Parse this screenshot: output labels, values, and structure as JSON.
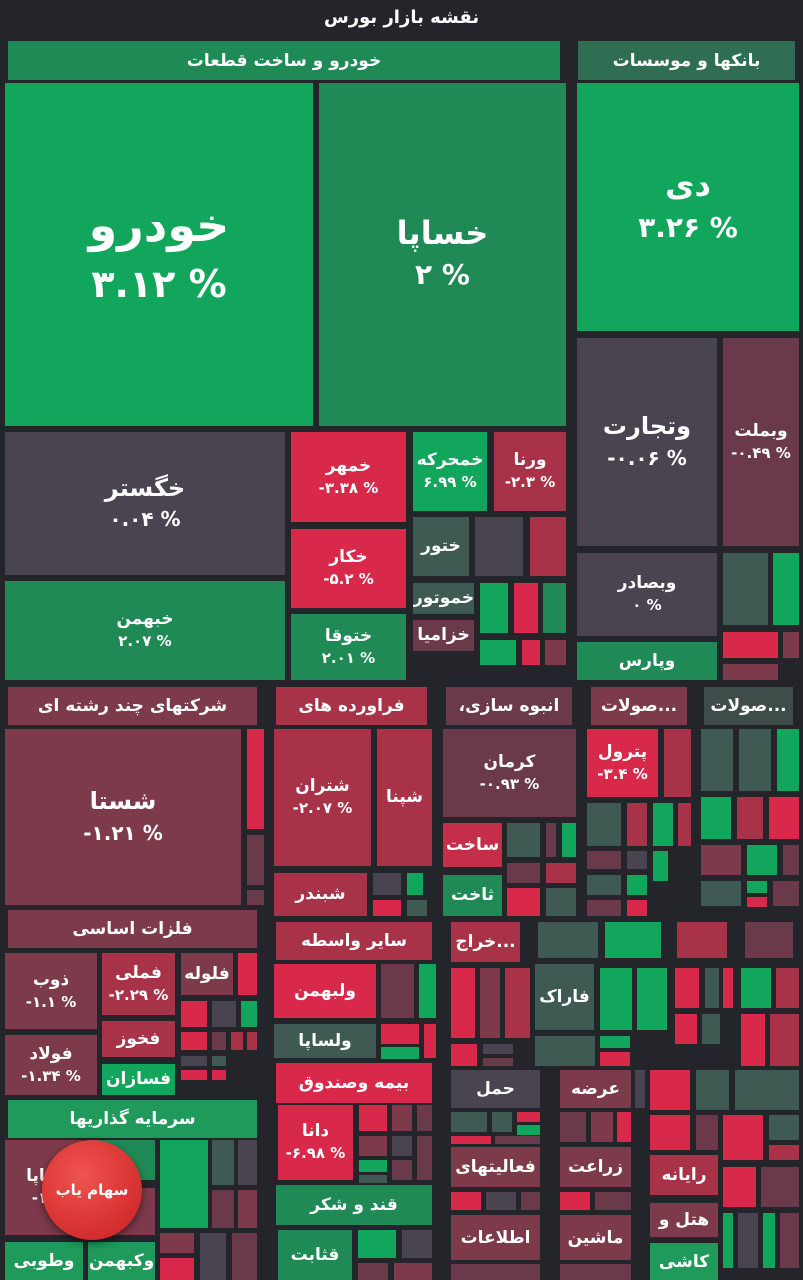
{
  "title": "نقشه بازار بورس",
  "colors": {
    "background": "#23252b",
    "strong_green": "#12a65c",
    "green": "#1f8a55",
    "neutral_green": "#3e5a52",
    "neutral": "#4a4450",
    "light_red": "#6b3a4a",
    "red": "#a83248",
    "strong_red": "#d8294a"
  },
  "sectors": {
    "auto": "خودرو و ساخت قطعات",
    "banks": "بانکها و موسسات",
    "multi": "شرکتهای چند رشته ای",
    "refinery": "فراورده های",
    "construction": "انبوه سازی،",
    "products1": "...صولات",
    "products2": "...صولات",
    "metals": "فلزات اساسی",
    "intermediary": "سایر واسطه",
    "mining": "...خراج",
    "insurance": "بیمه وصندوق",
    "investment": "سرمایه گذاریها",
    "sugar": "قند و شکر",
    "transport": "حمل",
    "supply": "عرضه",
    "activities": "فعالیتهای",
    "information": "اطلاعات",
    "agriculture": "زراعت",
    "machinery": "ماشین",
    "computer": "رایانه",
    "hotel": "هتل و",
    "tile": "کاشی"
  },
  "stocks": {
    "khodro": {
      "name": "خودرو",
      "change": "۳.۱۲ %"
    },
    "khsapa": {
      "name": "خساپا",
      "change": "۲ %"
    },
    "dey": {
      "name": "دی",
      "change": "۳.۲۶ %"
    },
    "vtejarat": {
      "name": "وتجارت",
      "change": "-۰.۰۶ %"
    },
    "vbmellat": {
      "name": "وبملت",
      "change": "-۰.۴۹ %"
    },
    "vbsader": {
      "name": "وبصادر",
      "change": "۰ %"
    },
    "vpars": {
      "name": "وپارس"
    },
    "khgostar": {
      "name": "خگستر",
      "change": "۰.۰۴ %"
    },
    "khbahman": {
      "name": "خبهمن",
      "change": "۲.۰۷ %"
    },
    "khmehr": {
      "name": "خمهر",
      "change": "-۳.۳۸ %"
    },
    "khkar": {
      "name": "خکار",
      "change": "-۵.۲ %"
    },
    "khtoga": {
      "name": "ختوقا",
      "change": "۲.۰۱ %"
    },
    "khmoharrekeh": {
      "name": "خمحرکه",
      "change": "۶.۹۹ %"
    },
    "varna": {
      "name": "ورنا",
      "change": "-۲.۳ %"
    },
    "khtoor": {
      "name": "ختور"
    },
    "khmotor": {
      "name": "خموتور"
    },
    "khzamia": {
      "name": "خزامیا"
    },
    "shasta": {
      "name": "شستا",
      "change": "-۱.۲۱ %"
    },
    "shetran": {
      "name": "شتران",
      "change": "-۲.۰۷ %"
    },
    "shepna": {
      "name": "شپنا"
    },
    "shebandar": {
      "name": "شبندر"
    },
    "kerman": {
      "name": "کرمان",
      "change": "-۰.۹۳ %"
    },
    "sakht": {
      "name": "ساخت"
    },
    "sakht2": {
      "name": "ثاخت"
    },
    "petrol": {
      "name": "پترول",
      "change": "-۳.۴ %"
    },
    "farak": {
      "name": "فاراک"
    },
    "zob": {
      "name": "ذوب",
      "change": "-۱.۱ %"
    },
    "foolad": {
      "name": "فولاد",
      "change": "-۱.۳۴ %"
    },
    "fameli": {
      "name": "فملی",
      "change": "-۲.۲۹ %"
    },
    "folooleh": {
      "name": "فلوله"
    },
    "fakhooz": {
      "name": "فخوز"
    },
    "fsazan": {
      "name": "فسازان"
    },
    "vlbahman": {
      "name": "ولبهمن"
    },
    "vlsapa": {
      "name": "ولساپا"
    },
    "dana": {
      "name": "دانا",
      "change": "-۶.۹۸ %"
    },
    "sabet": {
      "name": "قثابت"
    },
    "vsapa": {
      "name": "ساپا",
      "change": "-۱۱"
    },
    "vtoobi": {
      "name": "وطوبی"
    },
    "vkbahman": {
      "name": "وکبهمن"
    },
    "partial1": {
      "name": "و"
    },
    "partial2": {
      "name": "و"
    }
  },
  "logo_text": "سهام یاب"
}
